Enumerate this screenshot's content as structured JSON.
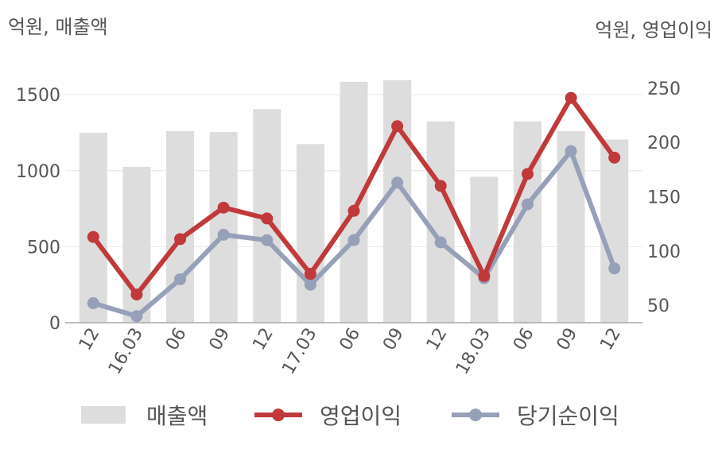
{
  "unit_left": "억원, 매출액",
  "unit_right": "억원, 영업이익",
  "chart_data": {
    "type": "bar+line",
    "categories": [
      "12",
      "16.03",
      "06",
      "09",
      "12",
      "17.03",
      "06",
      "09",
      "12",
      "18.03",
      "06",
      "09",
      "12"
    ],
    "left_axis": {
      "ticks": [
        0,
        500,
        1000,
        1500
      ],
      "ylim": [
        0,
        1600
      ]
    },
    "right_axis": {
      "ticks": [
        50,
        100,
        150,
        200,
        250
      ],
      "ylim": [
        34,
        258
      ]
    },
    "series": [
      {
        "name": "매출액",
        "kind": "bar",
        "axis": "left",
        "color": "#dddddd",
        "values": [
          1250,
          1025,
          1260,
          1255,
          1405,
          1175,
          1585,
          1595,
          1325,
          960,
          1325,
          1260,
          1205
        ]
      },
      {
        "name": "영업이익",
        "kind": "line",
        "axis": "right",
        "color": "#c0393b",
        "values": [
          113,
          60,
          111,
          140,
          130,
          79,
          137,
          215,
          160,
          77,
          171,
          241,
          186
        ]
      },
      {
        "name": "당기순이익",
        "kind": "line",
        "axis": "right",
        "color": "#96a0b9",
        "values": [
          52,
          40,
          74,
          115,
          110,
          69,
          110,
          163,
          108,
          75,
          143,
          192,
          84
        ]
      }
    ],
    "grid": true,
    "legend_position": "bottom"
  }
}
